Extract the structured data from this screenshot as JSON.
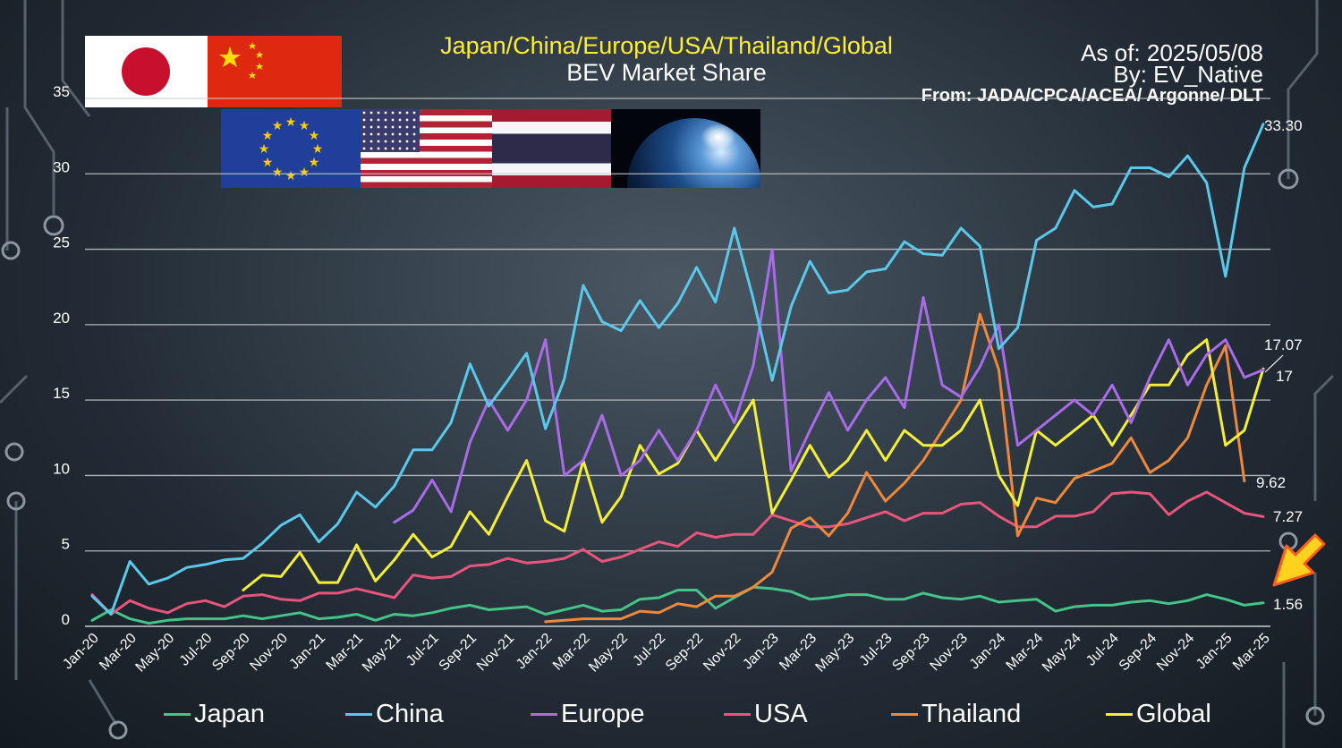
{
  "title": {
    "line1": "Japan/China/Europe/USA/Thailand/Global",
    "line2": "BEV Market Share"
  },
  "meta": {
    "as_of": "As of: 2025/05/08",
    "by": "By: EV_Native",
    "source": "From: JADA/CPCA/ACEA/ Argonne/ DLT"
  },
  "flags": [
    "japan-flag",
    "china-flag",
    "eu-flag",
    "usa-flag",
    "thailand-flag",
    "earth-image"
  ],
  "colors": {
    "title": "#ffee33",
    "text": "#ffffff",
    "grid": "#c9ced3",
    "arrow": "#ffd21f"
  },
  "chart_data": {
    "type": "line",
    "title": "BEV Market Share",
    "xlabel": "",
    "ylabel": "",
    "ylim": [
      0,
      35
    ],
    "y_ticks": [
      "0",
      "5",
      "10",
      "15",
      "20",
      "25",
      "30",
      "35"
    ],
    "grid": true,
    "legend_position": "bottom",
    "x": [
      "Jan-20",
      "Feb-20",
      "Mar-20",
      "Apr-20",
      "May-20",
      "Jun-20",
      "Jul-20",
      "Aug-20",
      "Sep-20",
      "Oct-20",
      "Nov-20",
      "Dec-20",
      "Jan-21",
      "Feb-21",
      "Mar-21",
      "Apr-21",
      "May-21",
      "Jun-21",
      "Jul-21",
      "Aug-21",
      "Sep-21",
      "Oct-21",
      "Nov-21",
      "Dec-21",
      "Jan-22",
      "Feb-22",
      "Mar-22",
      "Apr-22",
      "May-22",
      "Jun-22",
      "Jul-22",
      "Aug-22",
      "Sep-22",
      "Oct-22",
      "Nov-22",
      "Dec-22",
      "Jan-23",
      "Feb-23",
      "Mar-23",
      "Apr-23",
      "May-23",
      "Jun-23",
      "Jul-23",
      "Aug-23",
      "Sep-23",
      "Oct-23",
      "Nov-23",
      "Dec-23",
      "Jan-24",
      "Feb-24",
      "Mar-24",
      "Apr-24",
      "May-24",
      "Jun-24",
      "Jul-24",
      "Aug-24",
      "Sep-24",
      "Oct-24",
      "Nov-24",
      "Dec-24",
      "Jan-25",
      "Feb-25",
      "Mar-25"
    ],
    "x_tick_labels": [
      "Jan-20",
      "Mar-20",
      "May-20",
      "Jul-20",
      "Sep-20",
      "Nov-20",
      "Jan-21",
      "Mar-21",
      "May-21",
      "Jul-21",
      "Sep-21",
      "Nov-21",
      "Jan-22",
      "Mar-22",
      "May-22",
      "Jul-22",
      "Sep-22",
      "Nov-22",
      "Jan-23",
      "Mar-23",
      "May-23",
      "Jul-23",
      "Sep-23",
      "Nov-23",
      "Jan-24",
      "Mar-24",
      "May-24",
      "Jul-24",
      "Sep-24",
      "Nov-24",
      "Jan-25",
      "Mar-25"
    ],
    "series": [
      {
        "name": "Japan",
        "color": "#45c487",
        "end_label": "1.56",
        "values": [
          0.4,
          1.1,
          0.5,
          0.2,
          0.4,
          0.5,
          0.5,
          0.5,
          0.7,
          0.5,
          0.7,
          0.9,
          0.5,
          0.6,
          0.8,
          0.4,
          0.8,
          0.7,
          0.9,
          1.2,
          1.4,
          1.1,
          1.2,
          1.3,
          0.8,
          1.1,
          1.4,
          1.0,
          1.1,
          1.8,
          1.9,
          2.4,
          2.4,
          1.2,
          1.9,
          2.6,
          2.5,
          2.3,
          1.8,
          1.9,
          2.1,
          2.1,
          1.8,
          1.8,
          2.2,
          1.9,
          1.8,
          2.0,
          1.6,
          1.7,
          1.8,
          1.0,
          1.3,
          1.4,
          1.4,
          1.6,
          1.7,
          1.5,
          1.7,
          2.1,
          1.8,
          1.4,
          1.56
        ]
      },
      {
        "name": "China",
        "color": "#5ac8ea",
        "end_label": "33.30",
        "values": [
          2.0,
          0.8,
          4.3,
          2.8,
          3.2,
          3.9,
          4.1,
          4.4,
          4.5,
          5.5,
          6.7,
          7.4,
          5.6,
          6.8,
          8.9,
          7.9,
          9.3,
          11.7,
          11.7,
          13.5,
          17.4,
          14.6,
          16.3,
          18.1,
          13.1,
          16.4,
          22.6,
          20.2,
          19.6,
          21.6,
          19.8,
          21.4,
          23.8,
          21.5,
          26.4,
          21.7,
          16.3,
          21.2,
          24.2,
          22.1,
          22.3,
          23.5,
          23.7,
          25.5,
          24.7,
          24.6,
          26.4,
          25.2,
          18.4,
          19.8,
          25.6,
          26.4,
          28.9,
          27.8,
          28.0,
          30.4,
          30.4,
          29.8,
          31.2,
          29.4,
          23.2,
          30.4,
          33.3
        ]
      },
      {
        "name": "Europe",
        "color": "#a96be8",
        "end_label": "17",
        "values": [
          null,
          null,
          null,
          null,
          null,
          null,
          null,
          null,
          null,
          null,
          null,
          null,
          null,
          null,
          null,
          null,
          6.9,
          7.7,
          9.7,
          7.6,
          12.2,
          15.0,
          13.0,
          15.0,
          19.0,
          10.0,
          11.0,
          14.0,
          10.0,
          11.0,
          13.0,
          11.0,
          13.0,
          16.0,
          13.5,
          17.3,
          25.0,
          10.3,
          13.0,
          15.5,
          13.0,
          15.0,
          16.5,
          14.5,
          21.8,
          16.0,
          15.2,
          17.2,
          20.0,
          12.0,
          13.0,
          14.0,
          15.0,
          14.0,
          16.0,
          13.5,
          16.5,
          19.0,
          16.0,
          18.0,
          19.0,
          16.5,
          17.0
        ]
      },
      {
        "name": "USA",
        "color": "#e8557a",
        "end_label": "7.27",
        "values": [
          2.1,
          0.8,
          1.7,
          1.2,
          0.9,
          1.5,
          1.7,
          1.3,
          2.0,
          2.1,
          1.8,
          1.7,
          2.2,
          2.2,
          2.5,
          2.2,
          1.9,
          3.4,
          3.2,
          3.3,
          4.0,
          4.1,
          4.5,
          4.2,
          4.3,
          4.5,
          5.1,
          4.3,
          4.6,
          5.1,
          5.6,
          5.3,
          6.2,
          5.9,
          6.1,
          6.1,
          7.4,
          7.0,
          6.6,
          6.6,
          6.8,
          7.2,
          7.6,
          7.0,
          7.5,
          7.5,
          8.1,
          8.2,
          7.3,
          6.6,
          6.6,
          7.3,
          7.3,
          7.6,
          8.8,
          8.9,
          8.8,
          7.4,
          8.3,
          8.9,
          8.2,
          7.5,
          7.27
        ]
      },
      {
        "name": "Thailand",
        "color": "#f0883a",
        "end_label": "9.62",
        "values": [
          null,
          null,
          null,
          null,
          null,
          null,
          null,
          null,
          null,
          null,
          null,
          null,
          null,
          null,
          null,
          null,
          null,
          null,
          null,
          null,
          null,
          null,
          null,
          null,
          0.3,
          0.4,
          0.5,
          0.5,
          0.5,
          1.0,
          0.9,
          1.5,
          1.3,
          2.0,
          2.0,
          2.6,
          3.6,
          6.5,
          7.2,
          6.0,
          7.5,
          10.2,
          8.3,
          9.5,
          11.0,
          13.0,
          15.0,
          20.7,
          17.0,
          6.0,
          8.5,
          8.2,
          9.8,
          10.3,
          10.8,
          12.5,
          10.2,
          11.0,
          12.5,
          16.0,
          18.6,
          9.62,
          null
        ]
      },
      {
        "name": "Global",
        "color": "#f4ef36",
        "end_label": "17.07",
        "values": [
          null,
          null,
          null,
          null,
          null,
          null,
          null,
          null,
          2.4,
          3.4,
          3.3,
          4.9,
          2.9,
          2.9,
          5.4,
          3.0,
          4.4,
          6.1,
          4.6,
          5.3,
          7.6,
          6.1,
          8.6,
          11.0,
          7.0,
          6.3,
          11.0,
          6.9,
          8.6,
          12.0,
          10.1,
          10.8,
          13.0,
          11.0,
          13.0,
          15.0,
          7.5,
          9.7,
          12.0,
          9.9,
          11.0,
          13.0,
          11.0,
          13.0,
          12.0,
          12.0,
          13.0,
          15.0,
          10.0,
          8.0,
          13.0,
          12.0,
          13.0,
          14.0,
          12.0,
          14.0,
          16.0,
          16.0,
          18.0,
          19.0,
          12.0,
          13.0,
          17.07
        ]
      }
    ]
  }
}
